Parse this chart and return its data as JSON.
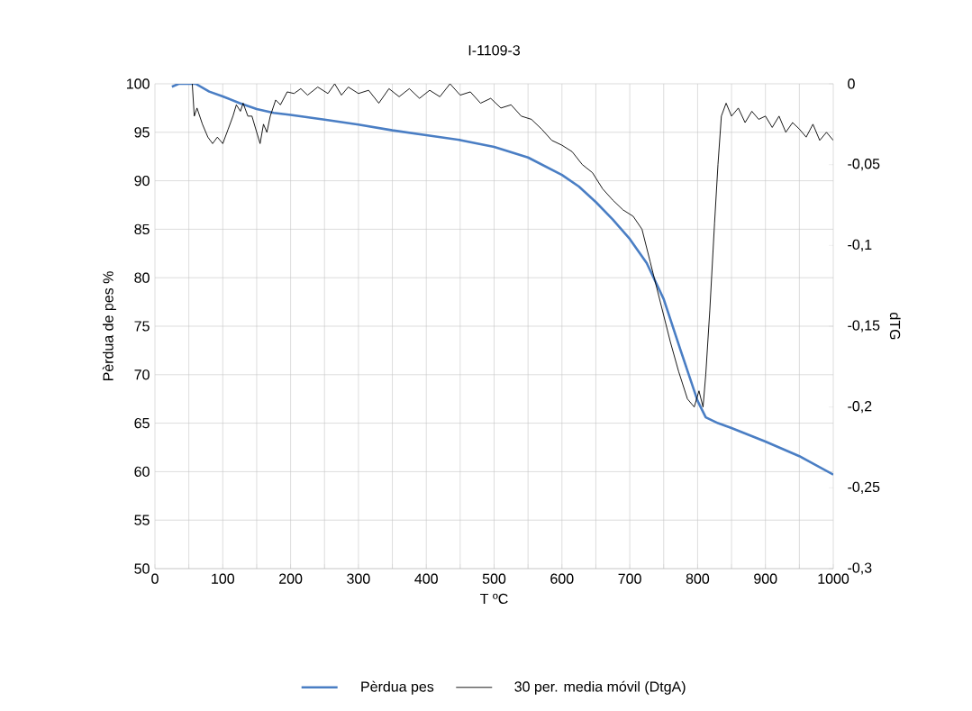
{
  "chart_data": {
    "type": "line",
    "title": "I-1109-3",
    "xlabel": "T ºC",
    "ylabel": "Pèrdua de pes %",
    "y2label": "dTG",
    "xlim": [
      0,
      1000
    ],
    "xticks": [
      0,
      {
        "value": 50,
        "label": null
      },
      100,
      {
        "value": 150,
        "label": null
      },
      200,
      {
        "value": 250,
        "label": null
      },
      300,
      {
        "value": 350,
        "label": null
      },
      400,
      {
        "value": 450,
        "label": null
      },
      500,
      {
        "value": 550,
        "label": null
      },
      600,
      {
        "value": 650,
        "label": null
      },
      700,
      {
        "value": 750,
        "label": null
      },
      800,
      {
        "value": 850,
        "label": null
      },
      900,
      {
        "value": 950,
        "label": null
      },
      1000
    ],
    "ylim": [
      50,
      100
    ],
    "yticks": [
      50,
      55,
      60,
      65,
      70,
      75,
      80,
      85,
      90,
      95,
      100
    ],
    "y2lim": [
      -0.3,
      0
    ],
    "y2ticks": [
      {
        "value": -0.3,
        "label": "-0,3"
      },
      {
        "value": -0.25,
        "label": "-0,25"
      },
      {
        "value": -0.2,
        "label": "-0,2"
      },
      {
        "value": -0.15,
        "label": "-0,15"
      },
      {
        "value": -0.1,
        "label": "-0,1"
      },
      {
        "value": -0.05,
        "label": "-0,05"
      },
      {
        "value": 0,
        "label": "0"
      }
    ],
    "grid": true,
    "legend": "bottom",
    "marker": "none",
    "line_style": "solid",
    "series": [
      {
        "name": "Pèrdua pes",
        "color": "#4a7ec4",
        "x": [
          25,
          35,
          60,
          80,
          100,
          125,
          150,
          175,
          200,
          250,
          300,
          350,
          400,
          450,
          500,
          550,
          600,
          625,
          650,
          675,
          700,
          725,
          750,
          775,
          800,
          812,
          830,
          850,
          900,
          950,
          1000
        ],
        "values": [
          99.7,
          100,
          100,
          99.2,
          98.7,
          98.0,
          97.4,
          97.0,
          96.8,
          96.3,
          95.8,
          95.2,
          94.7,
          94.2,
          93.5,
          92.4,
          90.6,
          89.4,
          87.8,
          86.0,
          84.0,
          81.5,
          77.8,
          72.5,
          67.3,
          65.6,
          65.0,
          64.5,
          63.1,
          61.6,
          59.7
        ]
      },
      {
        "name": "30 per. media móvil (DtgA)",
        "color": "#000000",
        "axis": "y2",
        "x": [
          55,
          58,
          62,
          70,
          78,
          85,
          92,
          100,
          108,
          115,
          120,
          126,
          130,
          137,
          143,
          150,
          155,
          160,
          165,
          170,
          178,
          185,
          195,
          205,
          215,
          225,
          240,
          255,
          265,
          275,
          285,
          300,
          315,
          330,
          345,
          360,
          375,
          390,
          405,
          420,
          435,
          450,
          465,
          480,
          495,
          510,
          525,
          540,
          555,
          570,
          585,
          600,
          615,
          630,
          645,
          660,
          675,
          690,
          705,
          718,
          730,
          745,
          760,
          772,
          785,
          795,
          802,
          808,
          812,
          818,
          825,
          830,
          835,
          842,
          850,
          860,
          870,
          880,
          890,
          900,
          910,
          920,
          930,
          940,
          950,
          960,
          970,
          980,
          990,
          1000
        ],
        "values": [
          0,
          -0.02,
          -0.015,
          -0.025,
          -0.033,
          -0.037,
          -0.033,
          -0.037,
          -0.028,
          -0.02,
          -0.013,
          -0.017,
          -0.012,
          -0.02,
          -0.02,
          -0.03,
          -0.037,
          -0.025,
          -0.03,
          -0.02,
          -0.01,
          -0.013,
          -0.005,
          -0.006,
          -0.003,
          -0.007,
          -0.002,
          -0.006,
          0,
          -0.007,
          -0.002,
          -0.006,
          -0.004,
          -0.012,
          -0.003,
          -0.008,
          -0.003,
          -0.009,
          -0.004,
          -0.008,
          0,
          -0.007,
          -0.005,
          -0.012,
          -0.009,
          -0.015,
          -0.013,
          -0.02,
          -0.022,
          -0.028,
          -0.035,
          -0.038,
          -0.042,
          -0.05,
          -0.055,
          -0.065,
          -0.072,
          -0.078,
          -0.082,
          -0.09,
          -0.11,
          -0.135,
          -0.16,
          -0.178,
          -0.195,
          -0.2,
          -0.19,
          -0.2,
          -0.18,
          -0.14,
          -0.086,
          -0.05,
          -0.02,
          -0.012,
          -0.02,
          -0.015,
          -0.024,
          -0.017,
          -0.022,
          -0.02,
          -0.027,
          -0.02,
          -0.03,
          -0.024,
          -0.028,
          -0.033,
          -0.025,
          -0.035,
          -0.03,
          -0.035
        ]
      }
    ]
  }
}
